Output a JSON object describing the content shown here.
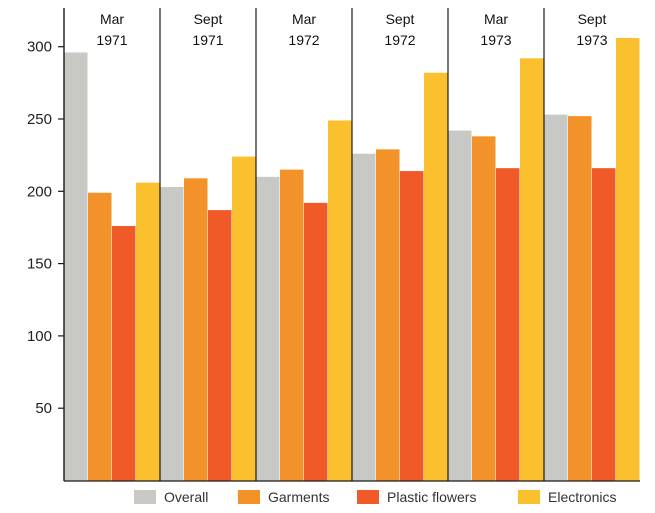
{
  "chart_data": {
    "type": "bar",
    "categories": [
      [
        "Mar",
        "1971"
      ],
      [
        "Sept",
        "1971"
      ],
      [
        "Mar",
        "1972"
      ],
      [
        "Sept",
        "1972"
      ],
      [
        "Mar",
        "1973"
      ],
      [
        "Sept",
        "1973"
      ]
    ],
    "series": [
      {
        "name": "Overall",
        "color": "#c8c8c5",
        "values": [
          296,
          203,
          210,
          226,
          242,
          253
        ]
      },
      {
        "name": "Garments",
        "color": "#f4922a",
        "values": [
          199,
          209,
          215,
          229,
          238,
          252
        ]
      },
      {
        "name": "Plastic flowers",
        "color": "#ef5a28",
        "values": [
          176,
          187,
          192,
          214,
          216,
          216
        ]
      },
      {
        "name": "Electronics",
        "color": "#fbc02d",
        "values": [
          206,
          224,
          249,
          282,
          292,
          306
        ]
      }
    ],
    "y_ticks": [
      50,
      100,
      150,
      200,
      250,
      300
    ],
    "ylim": [
      0,
      320
    ],
    "legend_position": "bottom-right",
    "grid": false
  }
}
